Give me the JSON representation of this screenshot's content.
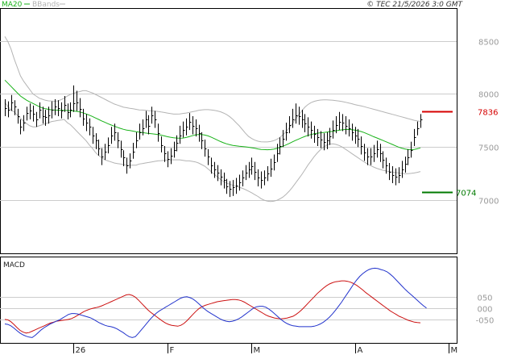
{
  "header": {
    "legend_ma": "MA20",
    "legend_bb": "BBands",
    "copyright": "© TEC 21/5/2026 3:0 GMT"
  },
  "colors": {
    "ma": "#19b219",
    "bands": "#b4b4b4",
    "bars": "#000000",
    "resistance": "#d60000",
    "support": "#007a00",
    "macd": "#2233cc",
    "signal": "#cc1111",
    "grid": "#cccccc"
  },
  "chart_data": [
    {
      "type": "ohlc",
      "panel": "price",
      "ylim": [
        6500,
        8800
      ],
      "y_ticks": [
        7000,
        7500,
        8000,
        8500
      ],
      "y_tick_labels": [
        "7000",
        "7500",
        "8000",
        "8500"
      ],
      "x_tick_labels": [
        "26",
        "F",
        "M",
        "A",
        "M"
      ],
      "x_tick_index": [
        22,
        52,
        79,
        112,
        142
      ],
      "levels": [
        {
          "name": "resistance",
          "value": 7836,
          "label": "7836"
        },
        {
          "name": "support",
          "value": 7074,
          "label": "7074"
        }
      ],
      "close": [
        7870,
        7850,
        7920,
        7880,
        7790,
        7690,
        7730,
        7820,
        7840,
        7810,
        7760,
        7850,
        7790,
        7780,
        7800,
        7850,
        7880,
        7870,
        7840,
        7900,
        7830,
        7850,
        7910,
        7920,
        7860,
        7770,
        7730,
        7690,
        7610,
        7560,
        7490,
        7410,
        7460,
        7520,
        7610,
        7640,
        7560,
        7480,
        7400,
        7330,
        7370,
        7460,
        7560,
        7640,
        7680,
        7760,
        7700,
        7800,
        7760,
        7630,
        7520,
        7440,
        7390,
        7420,
        7470,
        7540,
        7610,
        7660,
        7690,
        7740,
        7700,
        7680,
        7630,
        7560,
        7490,
        7410,
        7330,
        7290,
        7260,
        7220,
        7190,
        7130,
        7110,
        7120,
        7140,
        7170,
        7210,
        7260,
        7290,
        7320,
        7270,
        7210,
        7190,
        7210,
        7250,
        7300,
        7360,
        7440,
        7510,
        7580,
        7640,
        7710,
        7760,
        7800,
        7790,
        7760,
        7720,
        7690,
        7660,
        7620,
        7590,
        7570,
        7550,
        7560,
        7600,
        7660,
        7710,
        7740,
        7730,
        7700,
        7680,
        7640,
        7610,
        7580,
        7510,
        7450,
        7410,
        7410,
        7440,
        7480,
        7440,
        7380,
        7330,
        7270,
        7240,
        7220,
        7240,
        7290,
        7340,
        7400,
        7470,
        7590,
        7680,
        7760
      ],
      "high": [
        7950,
        7930,
        7990,
        7940,
        7860,
        7760,
        7800,
        7880,
        7910,
        7890,
        7830,
        7920,
        7880,
        7850,
        7880,
        7930,
        7950,
        7940,
        7920,
        7980,
        7910,
        7920,
        8080,
        8030,
        7960,
        7860,
        7810,
        7770,
        7690,
        7630,
        7570,
        7490,
        7530,
        7590,
        7690,
        7720,
        7640,
        7560,
        7470,
        7400,
        7440,
        7540,
        7640,
        7720,
        7760,
        7840,
        7800,
        7880,
        7840,
        7720,
        7600,
        7510,
        7460,
        7490,
        7550,
        7610,
        7700,
        7740,
        7770,
        7820,
        7790,
        7760,
        7710,
        7640,
        7570,
        7480,
        7400,
        7360,
        7330,
        7290,
        7260,
        7200,
        7180,
        7190,
        7210,
        7240,
        7280,
        7330,
        7360,
        7400,
        7360,
        7290,
        7270,
        7280,
        7320,
        7390,
        7430,
        7530,
        7590,
        7660,
        7730,
        7790,
        7860,
        7910,
        7880,
        7850,
        7810,
        7780,
        7740,
        7700,
        7670,
        7650,
        7630,
        7640,
        7680,
        7750,
        7790,
        7830,
        7810,
        7790,
        7760,
        7720,
        7690,
        7670,
        7600,
        7530,
        7490,
        7490,
        7520,
        7560,
        7530,
        7460,
        7400,
        7350,
        7320,
        7300,
        7310,
        7370,
        7410,
        7480,
        7550,
        7670,
        7740,
        7810
      ],
      "low": [
        7790,
        7780,
        7840,
        7800,
        7720,
        7620,
        7650,
        7750,
        7760,
        7740,
        7690,
        7770,
        7720,
        7700,
        7720,
        7770,
        7800,
        7790,
        7770,
        7830,
        7760,
        7780,
        7830,
        7840,
        7780,
        7700,
        7650,
        7610,
        7530,
        7480,
        7420,
        7330,
        7380,
        7440,
        7530,
        7560,
        7490,
        7400,
        7320,
        7250,
        7300,
        7390,
        7490,
        7570,
        7610,
        7680,
        7620,
        7720,
        7680,
        7550,
        7450,
        7360,
        7310,
        7340,
        7400,
        7460,
        7530,
        7590,
        7610,
        7660,
        7620,
        7600,
        7550,
        7480,
        7410,
        7330,
        7250,
        7210,
        7180,
        7140,
        7110,
        7060,
        7030,
        7040,
        7060,
        7090,
        7130,
        7190,
        7210,
        7240,
        7190,
        7130,
        7110,
        7140,
        7180,
        7220,
        7280,
        7360,
        7430,
        7500,
        7560,
        7630,
        7680,
        7720,
        7710,
        7680,
        7640,
        7600,
        7580,
        7540,
        7510,
        7490,
        7470,
        7480,
        7520,
        7580,
        7630,
        7660,
        7650,
        7620,
        7600,
        7560,
        7530,
        7500,
        7430,
        7370,
        7330,
        7330,
        7360,
        7400,
        7360,
        7300,
        7250,
        7190,
        7160,
        7140,
        7160,
        7210,
        7260,
        7330,
        7400,
        7510,
        7610,
        7680
      ],
      "ma20": [
        8130,
        8100,
        8070,
        8040,
        8010,
        7980,
        7960,
        7940,
        7925,
        7910,
        7895,
        7880,
        7868,
        7860,
        7855,
        7850,
        7848,
        7847,
        7846,
        7845,
        7844,
        7843,
        7840,
        7836,
        7830,
        7822,
        7812,
        7800,
        7788,
        7774,
        7760,
        7746,
        7733,
        7720,
        7708,
        7697,
        7686,
        7676,
        7667,
        7660,
        7655,
        7650,
        7645,
        7640,
        7636,
        7632,
        7628,
        7625,
        7622,
        7618,
        7612,
        7605,
        7598,
        7592,
        7588,
        7585,
        7584,
        7585,
        7590,
        7598,
        7607,
        7615,
        7618,
        7617,
        7613,
        7605,
        7594,
        7580,
        7566,
        7552,
        7540,
        7530,
        7522,
        7516,
        7512,
        7508,
        7505,
        7502,
        7498,
        7494,
        7488,
        7482,
        7478,
        7476,
        7475,
        7476,
        7480,
        7487,
        7496,
        7507,
        7520,
        7534,
        7548,
        7562,
        7575,
        7588,
        7600,
        7610,
        7618,
        7625,
        7630,
        7634,
        7637,
        7640,
        7644,
        7648,
        7653,
        7658,
        7662,
        7665,
        7666,
        7664,
        7660,
        7654,
        7646,
        7636,
        7624,
        7611,
        7598,
        7586,
        7574,
        7562,
        7550,
        7538,
        7525,
        7512,
        7500,
        7490,
        7482,
        7476,
        7475,
        7478,
        7484,
        7492
      ],
      "bb_upper": [
        8540,
        8490,
        8420,
        8330,
        8250,
        8170,
        8120,
        8080,
        8040,
        8000,
        7980,
        7960,
        7950,
        7940,
        7935,
        7932,
        7930,
        7935,
        7945,
        7960,
        7980,
        7995,
        8005,
        8015,
        8022,
        8030,
        8030,
        8020,
        8010,
        7995,
        7980,
        7965,
        7950,
        7935,
        7920,
        7905,
        7895,
        7885,
        7875,
        7870,
        7865,
        7860,
        7855,
        7850,
        7848,
        7845,
        7842,
        7840,
        7838,
        7835,
        7830,
        7825,
        7820,
        7815,
        7810,
        7810,
        7812,
        7816,
        7820,
        7825,
        7832,
        7838,
        7845,
        7850,
        7852,
        7852,
        7850,
        7845,
        7840,
        7832,
        7820,
        7805,
        7785,
        7760,
        7730,
        7700,
        7665,
        7630,
        7600,
        7580,
        7565,
        7555,
        7550,
        7548,
        7548,
        7552,
        7560,
        7572,
        7590,
        7615,
        7645,
        7680,
        7720,
        7760,
        7800,
        7840,
        7875,
        7900,
        7918,
        7930,
        7938,
        7942,
        7944,
        7944,
        7942,
        7940,
        7937,
        7933,
        7928,
        7922,
        7915,
        7908,
        7900,
        7893,
        7887,
        7880,
        7872,
        7864,
        7856,
        7848,
        7840,
        7832,
        7824,
        7816,
        7808,
        7800,
        7792,
        7784,
        7776,
        7768,
        7760,
        7752,
        7746,
        7742
      ],
      "bb_lower": [
        7920,
        7880,
        7850,
        7830,
        7800,
        7770,
        7745,
        7720,
        7700,
        7690,
        7690,
        7700,
        7710,
        7720,
        7730,
        7740,
        7745,
        7750,
        7755,
        7760,
        7730,
        7710,
        7680,
        7650,
        7620,
        7590,
        7560,
        7520,
        7490,
        7450,
        7420,
        7400,
        7380,
        7370,
        7360,
        7350,
        7345,
        7340,
        7335,
        7330,
        7330,
        7330,
        7330,
        7340,
        7345,
        7350,
        7355,
        7360,
        7365,
        7370,
        7372,
        7375,
        7378,
        7380,
        7380,
        7380,
        7380,
        7375,
        7370,
        7370,
        7365,
        7360,
        7350,
        7335,
        7320,
        7295,
        7270,
        7245,
        7220,
        7195,
        7175,
        7160,
        7150,
        7140,
        7130,
        7122,
        7112,
        7100,
        7085,
        7070,
        7052,
        7035,
        7015,
        7000,
        6992,
        6988,
        6990,
        6998,
        7012,
        7030,
        7055,
        7085,
        7120,
        7160,
        7200,
        7240,
        7285,
        7330,
        7370,
        7410,
        7445,
        7475,
        7500,
        7518,
        7528,
        7530,
        7525,
        7515,
        7500,
        7480,
        7460,
        7440,
        7420,
        7400,
        7380,
        7360,
        7342,
        7326,
        7312,
        7300,
        7290,
        7282,
        7275,
        7270,
        7265,
        7260,
        7256,
        7252,
        7250,
        7250,
        7252,
        7256,
        7262,
        7270
      ]
    },
    {
      "type": "line",
      "panel": "macd",
      "title": "MACD",
      "ylim": [
        -150,
        220
      ],
      "y_ticks": [
        50,
        0,
        -50
      ],
      "y_tick_labels": [
        "050",
        "000",
        "-050"
      ],
      "series": [
        {
          "values": [
            -50,
            -52,
            -60,
            -72,
            -86,
            -98,
            -106,
            -110,
            -108,
            -102,
            -96,
            -90,
            -84,
            -78,
            -72,
            -66,
            -62,
            -58,
            -56,
            -54,
            -52,
            -50,
            -46,
            -40,
            -32,
            -24,
            -16,
            -10,
            -5,
            -1,
            2,
            5,
            10,
            16,
            22,
            28,
            34,
            40,
            46,
            52,
            58,
            60,
            56,
            48,
            36,
            22,
            8,
            -6,
            -18,
            -28,
            -38,
            -48,
            -58,
            -66,
            -72,
            -76,
            -78,
            -80,
            -76,
            -68,
            -56,
            -42,
            -28,
            -14,
            -2,
            6,
            12,
            16,
            20,
            24,
            28,
            30,
            32,
            34,
            36,
            38,
            38,
            36,
            32,
            26,
            18,
            10,
            2,
            -6,
            -14,
            -22,
            -30,
            -36,
            -40,
            -44,
            -46,
            -48,
            -46,
            -44,
            -40,
            -36,
            -28,
            -18,
            -6,
            8,
            22,
            36,
            50,
            64,
            76,
            88,
            98,
            106,
            112,
            116,
            118,
            120,
            120,
            118,
            114,
            108,
            100,
            90,
            80,
            68,
            58,
            48,
            38,
            28,
            18,
            8,
            -2,
            -12,
            -20,
            -28,
            -36,
            -42,
            -48,
            -54,
            -58,
            -62,
            -64,
            -65
          ]
        },
        {
          "values": [
            -70,
            -72,
            -78,
            -88,
            -100,
            -110,
            -118,
            -124,
            -128,
            -130,
            -120,
            -108,
            -96,
            -86,
            -78,
            -70,
            -64,
            -58,
            -52,
            -44,
            -36,
            -28,
            -24,
            -24,
            -26,
            -30,
            -34,
            -38,
            -42,
            -48,
            -56,
            -64,
            -70,
            -76,
            -80,
            -82,
            -86,
            -92,
            -100,
            -108,
            -118,
            -126,
            -130,
            -126,
            -112,
            -96,
            -80,
            -64,
            -48,
            -34,
            -22,
            -12,
            -4,
            4,
            12,
            20,
            28,
            36,
            44,
            48,
            50,
            46,
            40,
            30,
            18,
            6,
            -6,
            -16,
            -24,
            -32,
            -40,
            -48,
            -54,
            -58,
            -60,
            -58,
            -54,
            -48,
            -40,
            -30,
            -20,
            -10,
            0,
            6,
            8,
            8,
            4,
            -4,
            -14,
            -26,
            -38,
            -50,
            -60,
            -68,
            -74,
            -78,
            -80,
            -82,
            -82,
            -82,
            -82,
            -82,
            -80,
            -76,
            -70,
            -62,
            -52,
            -40,
            -26,
            -10,
            8,
            26,
            46,
            66,
            86,
            106,
            124,
            140,
            152,
            162,
            170,
            174,
            176,
            174,
            170,
            166,
            160,
            150,
            138,
            124,
            110,
            96,
            82,
            70,
            58,
            46,
            34,
            22,
            10,
            0
          ]
        }
      ]
    }
  ]
}
